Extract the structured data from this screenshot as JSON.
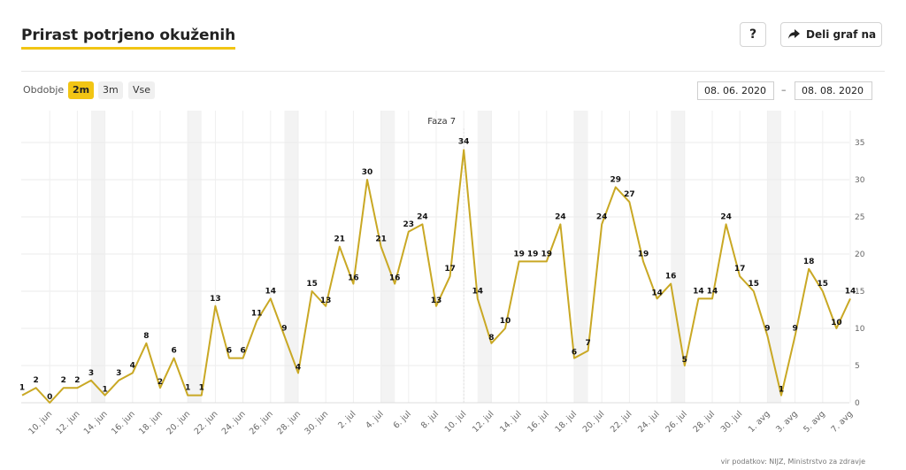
{
  "header": {
    "title": "Prirast potrjeno okuženih",
    "help_label": "?",
    "share_label": "Deli graf na",
    "share_icon": "share-arrow-icon"
  },
  "controls": {
    "period_label": "Obdobje",
    "periods": [
      "2m",
      "3m",
      "Vse"
    ],
    "active_period": "2m",
    "date_from": "08. 06. 2020",
    "date_separator": "–",
    "date_to": "08. 08. 2020"
  },
  "footer": {
    "source": "vir podatkov: NIJZ, Ministrstvo za zdravje"
  },
  "colors": {
    "accent": "#f2c514",
    "line": "#c9a824",
    "weekend_band": "#f3f3f3"
  },
  "chart_data": {
    "type": "line",
    "title": "Prirast potrjeno okuženih",
    "x_start": "2020-06-08",
    "x": [
      "8. jun",
      "9. jun",
      "10. jun",
      "11. jun",
      "12. jun",
      "13. jun",
      "14. jun",
      "15. jun",
      "16. jun",
      "17. jun",
      "18. jun",
      "19. jun",
      "20. jun",
      "21. jun",
      "22. jun",
      "23. jun",
      "24. jun",
      "25. jun",
      "26. jun",
      "27. jun",
      "28. jun",
      "29. jun",
      "30. jun",
      "1. jul",
      "2. jul",
      "3. jul",
      "4. jul",
      "5. jul",
      "6. jul",
      "7. jul",
      "8. jul",
      "9. jul",
      "10. jul",
      "11. jul",
      "12. jul",
      "13. jul",
      "14. jul",
      "15. jul",
      "16. jul",
      "17. jul",
      "18. jul",
      "19. jul",
      "20. jul",
      "21. jul",
      "22. jul",
      "23. jul",
      "24. jul",
      "25. jul",
      "26. jul",
      "27. jul",
      "28. jul",
      "29. jul",
      "30. jul",
      "31. jul",
      "1. avg",
      "2. avg",
      "3. avg",
      "4. avg",
      "5. avg",
      "6. avg",
      "7. avg"
    ],
    "values": [
      1,
      2,
      0,
      2,
      2,
      3,
      1,
      3,
      4,
      8,
      2,
      6,
      1,
      1,
      13,
      6,
      6,
      11,
      14,
      9,
      4,
      15,
      13,
      21,
      16,
      30,
      21,
      16,
      23,
      24,
      13,
      17,
      34,
      14,
      8,
      10,
      19,
      19,
      19,
      24,
      6,
      7,
      24,
      29,
      27,
      19,
      14,
      16,
      5,
      14,
      14,
      24,
      17,
      15,
      9,
      1,
      9,
      18,
      15,
      10,
      14
    ],
    "x_tick_labels": [
      "10. jun",
      "12. jun",
      "14. jun",
      "16. jun",
      "18. jun",
      "20. jun",
      "22. jun",
      "24. jun",
      "26. jun",
      "28. jun",
      "30. jun",
      "2. jul",
      "4. jul",
      "6. jul",
      "8. jul",
      "10. jul",
      "12. jul",
      "14. jul",
      "16. jul",
      "18. jul",
      "20. jul",
      "22. jul",
      "24. jul",
      "26. jul",
      "28. jul",
      "30. jul",
      "1. avg",
      "3. avg",
      "5. avg",
      "7. avg"
    ],
    "y_ticks": [
      0,
      5,
      10,
      15,
      20,
      25,
      30,
      35
    ],
    "ylim": [
      0,
      37
    ],
    "weekend_bands": [
      [
        "13. jun",
        "14. jun"
      ],
      [
        "20. jun",
        "21. jun"
      ],
      [
        "27. jun",
        "28. jun"
      ],
      [
        "4. jul",
        "5. jul"
      ],
      [
        "11. jul",
        "12. jul"
      ],
      [
        "18. jul",
        "19. jul"
      ],
      [
        "25. jul",
        "26. jul"
      ],
      [
        "1. avg",
        "2. avg"
      ]
    ],
    "annotation": {
      "text": "Faza 7",
      "at": "10. jul"
    },
    "grid": true,
    "data_labels": true
  }
}
